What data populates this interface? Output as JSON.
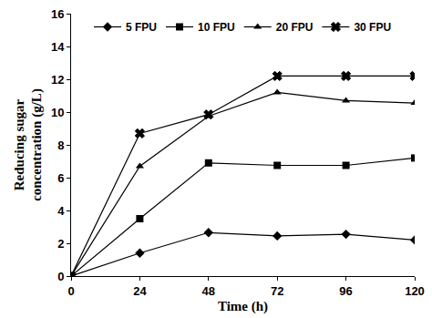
{
  "chart_data": {
    "type": "line",
    "x_label": "Time (h)",
    "y_label": "Reducing sugar concentration (g/L)",
    "x": [
      0,
      24,
      48,
      72,
      96,
      120
    ],
    "series": [
      {
        "name": "5 FPU",
        "color": "#000000",
        "marker": "diamond",
        "values": [
          0,
          1.4,
          2.65,
          2.45,
          2.55,
          2.2
        ]
      },
      {
        "name": "10 FPU",
        "color": "#000000",
        "marker": "square",
        "values": [
          0,
          3.5,
          6.9,
          6.75,
          6.75,
          7.2
        ]
      },
      {
        "name": "20 FPU",
        "color": "#000000",
        "marker": "triangle-up",
        "values": [
          0,
          6.7,
          9.75,
          11.2,
          10.7,
          10.55
        ]
      },
      {
        "name": "30 FPU",
        "color": "#000000",
        "marker": "x",
        "values": [
          0,
          8.7,
          9.85,
          12.2,
          12.2,
          12.2
        ]
      }
    ],
    "xlim": [
      0,
      120
    ],
    "xticks": [
      0,
      24,
      48,
      72,
      96,
      120
    ],
    "ylim": [
      0,
      16
    ],
    "yticks": [
      0,
      2,
      4,
      6,
      8,
      10,
      12,
      14,
      16
    ],
    "grid": false,
    "legend": "top"
  }
}
